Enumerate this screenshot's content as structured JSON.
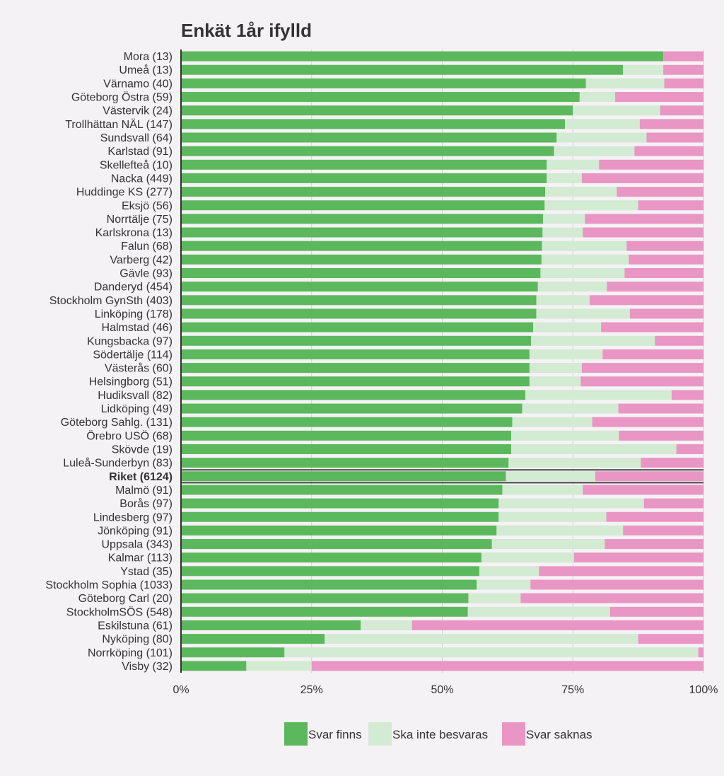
{
  "chart_data": {
    "type": "bar",
    "orientation": "horizontal",
    "stacked": true,
    "title": "Enkät 1år ifylld",
    "xlabel": "",
    "ylabel": "",
    "xlim": [
      0,
      100
    ],
    "x_ticks": [
      "0%",
      "25%",
      "50%",
      "75%",
      "100%"
    ],
    "x_tick_values": [
      0,
      25,
      50,
      75,
      100
    ],
    "grid": true,
    "legend_position": "bottom",
    "highlight_category": "Riket (6124)",
    "series_colors": [
      "#5cb85c",
      "#d3ead3",
      "#e996c4"
    ],
    "categories": [
      "Mora (13)",
      "Umeå (13)",
      "Värnamo (40)",
      "Göteborg Östra (59)",
      "Västervik (24)",
      "Trollhättan NÄL (147)",
      "Sundsvall (64)",
      "Karlstad (91)",
      "Skellefteå (10)",
      "Nacka (449)",
      "Huddinge KS (277)",
      "Eksjö (56)",
      "Norrtälje (75)",
      "Karlskrona (13)",
      "Falun (68)",
      "Varberg (42)",
      "Gävle (93)",
      "Danderyd (454)",
      "Stockholm GynSth (403)",
      "Linköping (178)",
      "Halmstad (46)",
      "Kungsbacka (97)",
      "Södertälje (114)",
      "Västerås (60)",
      "Helsingborg (51)",
      "Hudiksvall (82)",
      "Lidköping (49)",
      "Göteborg Sahlg. (131)",
      "Örebro USÖ (68)",
      "Skövde (19)",
      "Luleå-Sunderbyn (83)",
      "Riket (6124)",
      "Malmö (91)",
      "Borås (97)",
      "Lindesberg (97)",
      "Jönköping (91)",
      "Uppsala (343)",
      "Kalmar (113)",
      "Ystad (35)",
      "Stockholm Sophia (1033)",
      "Göteborg Carl (20)",
      "StockholmSÖS (548)",
      "Eskilstuna (61)",
      "Nyköping (80)",
      "Norrköping (101)",
      "Visby (32)"
    ],
    "series": [
      {
        "name": "Svar finns",
        "values": [
          92.3,
          84.6,
          77.5,
          76.3,
          75.0,
          73.5,
          71.9,
          71.4,
          70.0,
          70.0,
          69.7,
          69.6,
          69.3,
          69.2,
          69.1,
          69.0,
          68.8,
          68.3,
          68.0,
          68.0,
          67.4,
          67.0,
          66.7,
          66.7,
          66.7,
          65.9,
          65.3,
          63.4,
          63.2,
          63.2,
          62.7,
          62.2,
          61.5,
          60.8,
          60.8,
          60.4,
          59.5,
          57.5,
          57.1,
          56.6,
          55.0,
          54.9,
          34.4,
          27.5,
          19.8,
          12.5
        ]
      },
      {
        "name": "Ska inte besvaras",
        "values": [
          0.0,
          7.7,
          15.0,
          6.8,
          16.7,
          14.3,
          17.2,
          15.4,
          10.0,
          6.7,
          13.7,
          17.9,
          8.0,
          7.7,
          16.2,
          16.7,
          16.1,
          13.2,
          10.2,
          17.9,
          13.0,
          23.7,
          14.0,
          10.0,
          9.8,
          28.0,
          18.4,
          15.3,
          20.6,
          31.6,
          25.3,
          17.1,
          15.4,
          27.8,
          20.6,
          24.2,
          21.6,
          17.7,
          11.4,
          10.3,
          10.0,
          27.2,
          9.8,
          60.0,
          79.2,
          12.5
        ]
      },
      {
        "name": "Svar saknas",
        "values": [
          7.7,
          7.7,
          7.5,
          16.9,
          8.3,
          12.2,
          10.9,
          13.2,
          20.0,
          23.3,
          16.6,
          12.5,
          22.7,
          23.1,
          14.7,
          14.3,
          15.1,
          18.5,
          21.8,
          14.1,
          19.6,
          9.3,
          19.3,
          23.3,
          23.5,
          6.1,
          16.3,
          21.3,
          16.2,
          5.2,
          12.0,
          20.7,
          23.1,
          11.4,
          18.6,
          15.4,
          18.9,
          24.8,
          31.5,
          33.1,
          35.0,
          17.9,
          55.8,
          12.5,
          1.0,
          75.0
        ]
      }
    ]
  }
}
